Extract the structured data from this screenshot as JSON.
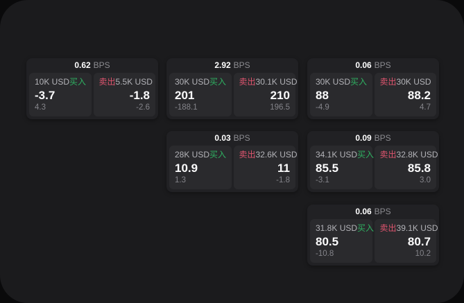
{
  "labels": {
    "bps_unit": "BPS",
    "buy": "买入",
    "sell": "卖出"
  },
  "colors": {
    "panel": "#1b1b1d",
    "card": "#212124",
    "cell": "#2a2a2d",
    "buy_green": "#2fb061",
    "sell_red": "#e0556f"
  },
  "cards": [
    {
      "bps": "0.62",
      "buy": {
        "amount": "10K USD",
        "price": "-3.7",
        "delta": "4.3"
      },
      "sell": {
        "amount": "5.5K USD",
        "price": "-1.8",
        "delta": "-2.6"
      }
    },
    {
      "bps": "2.92",
      "buy": {
        "amount": "30K USD",
        "price": "201",
        "delta": "-188.1"
      },
      "sell": {
        "amount": "30.1K USD",
        "price": "210",
        "delta": "196.5"
      }
    },
    {
      "bps": "0.06",
      "buy": {
        "amount": "30K USD",
        "price": "88",
        "delta": "-4.9"
      },
      "sell": {
        "amount": "30K USD",
        "price": "88.2",
        "delta": "4.7"
      }
    },
    {
      "bps": "0.03",
      "buy": {
        "amount": "28K USD",
        "price": "10.9",
        "delta": "1.3"
      },
      "sell": {
        "amount": "32.6K USD",
        "price": "11",
        "delta": "-1.8"
      }
    },
    {
      "bps": "0.09",
      "buy": {
        "amount": "34.1K USD",
        "price": "85.5",
        "delta": "-3.1"
      },
      "sell": {
        "amount": "32.8K USD",
        "price": "85.8",
        "delta": "3.0"
      }
    },
    {
      "bps": "0.06",
      "buy": {
        "amount": "31.8K USD",
        "price": "80.5",
        "delta": "-10.8"
      },
      "sell": {
        "amount": "39.1K USD",
        "price": "80.7",
        "delta": "10.2"
      }
    }
  ]
}
